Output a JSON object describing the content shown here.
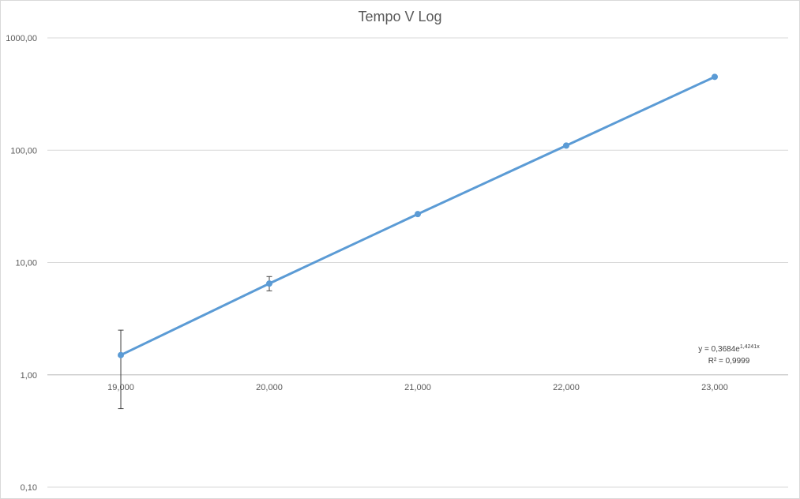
{
  "chart_data": {
    "type": "line",
    "title": "Tempo V Log",
    "xlabel": "",
    "ylabel": "",
    "y_scale": "log",
    "ylim": [
      0.1,
      1000
    ],
    "y_ticks": [
      {
        "value": 1000,
        "label": "1000,00"
      },
      {
        "value": 100,
        "label": "100,00"
      },
      {
        "value": 10,
        "label": "10,00"
      },
      {
        "value": 1,
        "label": "1,00"
      },
      {
        "value": 0.1,
        "label": "0,10"
      }
    ],
    "categories": [
      "19,000",
      "20,000",
      "21,000",
      "22,000",
      "23,000"
    ],
    "x_axis_crosses_at": 1,
    "grid": true,
    "legend": "none",
    "series": [
      {
        "values": [
          1.5,
          6.5,
          27,
          110,
          450
        ],
        "error_low": [
          0.5,
          5.6,
          null,
          null,
          null
        ],
        "error_high": [
          2.5,
          7.5,
          null,
          null,
          null
        ],
        "color": "#5b9bd5"
      }
    ],
    "trendline": {
      "equation_prefix": "y = 0,3684e",
      "equation_exponent": "1,4241x",
      "r_squared": "R² = 0,9999"
    }
  }
}
